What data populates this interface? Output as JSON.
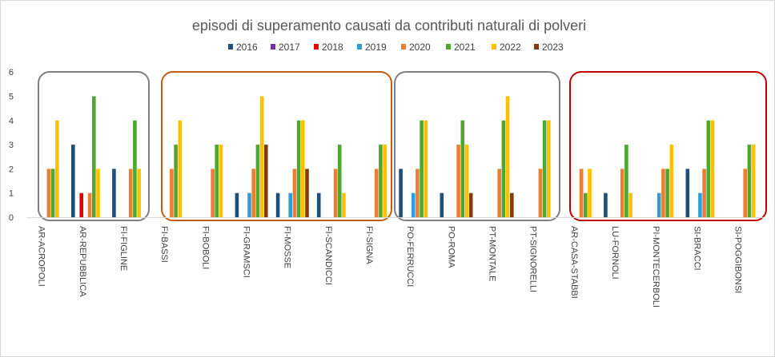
{
  "chart_data": {
    "type": "bar",
    "title": "episodi di superamento causati da contributi naturali di polveri",
    "xlabel": "",
    "ylabel": "",
    "ylim": [
      0,
      6
    ],
    "yticks": [
      0,
      1,
      2,
      3,
      4,
      5,
      6
    ],
    "grid": false,
    "legend_position": "top",
    "categories": [
      "AR-ACROPOLI",
      "AR-REPUBBLICA",
      "FI-FIGLINE",
      "FI-BASSI",
      "FI-BOBOLI",
      "FI-GRAMSCI",
      "FI-MOSSE",
      "FI-SCANDICCI",
      "FI-SIGNA",
      "PO-FERRUCCI",
      "PO-ROMA",
      "PT-MONTALE",
      "PT-SIGNORELLI",
      "AR-CASA-STABBI",
      "LU-FORNOLI",
      "PI-MONTECERBOLI",
      "SI-BRACCI",
      "SI-POGGIBONSI"
    ],
    "series": [
      {
        "name": "2016",
        "color": "#1f4e79",
        "values": [
          0,
          3,
          2,
          0,
          0,
          1,
          1,
          1,
          0,
          2,
          1,
          0,
          0,
          0,
          1,
          0,
          2,
          0
        ]
      },
      {
        "name": "2017",
        "color": "#7030a0",
        "values": [
          0,
          0,
          0,
          0,
          0,
          0,
          0,
          0,
          0,
          0,
          0,
          0,
          0,
          0,
          0,
          0,
          0,
          0
        ]
      },
      {
        "name": "2018",
        "color": "#e00000",
        "values": [
          0,
          1,
          0,
          0,
          0,
          0,
          0,
          0,
          0,
          0,
          0,
          0,
          0,
          0,
          0,
          0,
          0,
          0
        ]
      },
      {
        "name": "2019",
        "color": "#2e9fd6",
        "values": [
          0,
          0,
          0,
          0,
          0,
          1,
          1,
          0,
          0,
          1,
          0,
          0,
          0,
          0,
          0,
          1,
          1,
          0
        ]
      },
      {
        "name": "2020",
        "color": "#ed7d31",
        "values": [
          2,
          1,
          2,
          2,
          2,
          2,
          2,
          2,
          2,
          2,
          3,
          2,
          2,
          2,
          2,
          2,
          2,
          2
        ]
      },
      {
        "name": "2021",
        "color": "#4ea72e",
        "values": [
          2,
          5,
          4,
          3,
          3,
          3,
          4,
          3,
          3,
          4,
          4,
          4,
          4,
          1,
          3,
          2,
          4,
          3
        ]
      },
      {
        "name": "2022",
        "color": "#ffc000",
        "values": [
          4,
          2,
          2,
          4,
          3,
          5,
          4,
          1,
          3,
          4,
          3,
          5,
          4,
          2,
          1,
          3,
          4,
          3
        ]
      },
      {
        "name": "2023",
        "color": "#843c0c",
        "values": [
          0,
          0,
          0,
          0,
          0,
          3,
          2,
          0,
          0,
          0,
          1,
          1,
          0,
          0,
          0,
          0,
          0,
          0
        ]
      }
    ],
    "group_boxes": [
      {
        "from": "AR-ACROPOLI",
        "to": "FI-FIGLINE",
        "color": "#7f7f7f"
      },
      {
        "from": "FI-BASSI",
        "to": "FI-SIGNA",
        "color": "#c55a11"
      },
      {
        "from": "PO-FERRUCCI",
        "to": "PT-SIGNORELLI",
        "color": "#7f7f7f"
      },
      {
        "from": "AR-CASA-STABBI",
        "to": "SI-POGGIBONSI",
        "color": "#c00000"
      }
    ]
  }
}
